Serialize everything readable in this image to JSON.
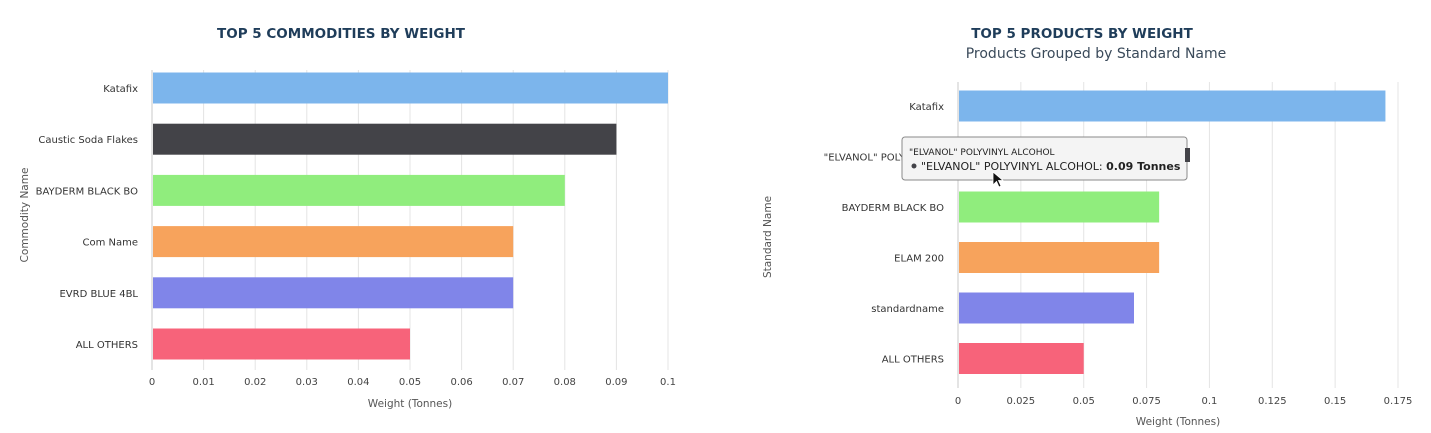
{
  "chart_data": [
    {
      "type": "bar",
      "orientation": "horizontal",
      "title": "TOP 5 COMMODITIES BY WEIGHT",
      "subtitle": "",
      "categories": [
        "Katafix",
        "Caustic Soda Flakes",
        "BAYDERM BLACK BO",
        "Com Name",
        "EVRD BLUE 4BL",
        "ALL OTHERS"
      ],
      "values": [
        0.1,
        0.09,
        0.08,
        0.07,
        0.07,
        0.05
      ],
      "colors": [
        "#7cb5ec",
        "#434348",
        "#90ed7d",
        "#f7a35c",
        "#8085e9",
        "#f7637a"
      ],
      "xlabel": "Weight (Tonnes)",
      "ylabel": "Commodity Name",
      "xlim": [
        0,
        0.1
      ],
      "ticks": [
        "0",
        "0.01",
        "0.02",
        "0.03",
        "0.04",
        "0.05",
        "0.06",
        "0.07",
        "0.08",
        "0.09",
        "0.1"
      ],
      "grid": true,
      "legend": "none"
    },
    {
      "type": "bar",
      "orientation": "horizontal",
      "title": "TOP 5 PRODUCTS BY WEIGHT",
      "subtitle": "Products Grouped by Standard Name",
      "categories": [
        "Katafix",
        "\"ELVANOL\" POLYVINYL A",
        "BAYDERM BLACK BO",
        "ELAM 200",
        "standardname",
        "ALL OTHERS"
      ],
      "values": [
        0.17,
        0.09,
        0.08,
        0.08,
        0.07,
        0.05
      ],
      "colors": [
        "#7cb5ec",
        "#434348",
        "#90ed7d",
        "#f7a35c",
        "#8085e9",
        "#f7637a"
      ],
      "xlabel": "Weight (Tonnes)",
      "ylabel": "Standard Name",
      "xlim": [
        0,
        0.175
      ],
      "ticks": [
        "0",
        "0.025",
        "0.05",
        "0.075",
        "0.1",
        "0.125",
        "0.15",
        "0.175"
      ],
      "grid": true,
      "legend": "none",
      "tooltip": {
        "header": "\"ELVANOL\" POLYVINYL ALCOHOL",
        "series": "\"ELVANOL\" POLYVINYL ALCOHOL",
        "value": "0.09 Tonnes"
      }
    }
  ]
}
